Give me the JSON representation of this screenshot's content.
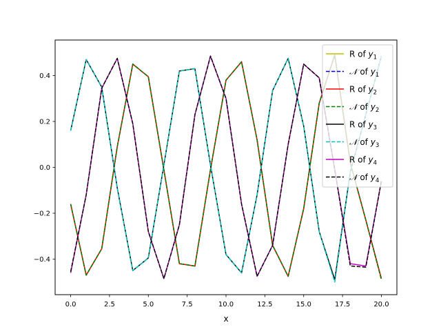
{
  "chart_data": {
    "type": "line",
    "title": "",
    "xlabel": "x",
    "ylabel": "",
    "xlim": [
      -1,
      21
    ],
    "ylim": [
      -0.555,
      0.555
    ],
    "xticks": [
      0.0,
      2.5,
      5.0,
      7.5,
      10.0,
      12.5,
      15.0,
      17.5,
      20.0
    ],
    "xtick_labels": [
      "0.0",
      "2.5",
      "5.0",
      "7.5",
      "10.0",
      "12.5",
      "15.0",
      "17.5",
      "20.0"
    ],
    "yticks": [
      -0.4,
      -0.2,
      0.0,
      0.2,
      0.4
    ],
    "ytick_labels": [
      "−0.4",
      "−0.2",
      "0.0",
      "0.2",
      "0.4"
    ],
    "grid": false,
    "legend_position": "top-right",
    "x": [
      0,
      1,
      2,
      3,
      4,
      5,
      6,
      7,
      8,
      9,
      10,
      11,
      12,
      13,
      14,
      15,
      16,
      17,
      18,
      19,
      20
    ],
    "series": [
      {
        "name": "R of y1",
        "label_main": "R of ",
        "label_var": "y",
        "label_sub": "1",
        "color": "#bfbf00",
        "dash": "solid",
        "values": [
          -0.16,
          -0.47,
          -0.355,
          0.09,
          0.45,
          0.395,
          -0.01,
          -0.42,
          -0.43,
          -0.01,
          0.38,
          0.46,
          0.12,
          -0.34,
          -0.475,
          -0.18,
          0.28,
          0.49,
          0.02,
          -0.23,
          -0.485
        ]
      },
      {
        "name": "N of y1",
        "label_main": " of ",
        "label_var": "y",
        "label_sub": "1",
        "color": "#0000bf",
        "dash": "dashed",
        "values": [
          -0.16,
          -0.47,
          -0.355,
          0.09,
          0.45,
          0.395,
          -0.01,
          -0.42,
          -0.43,
          -0.01,
          0.38,
          0.46,
          0.12,
          -0.34,
          -0.475,
          -0.18,
          0.28,
          0.49,
          0.02,
          -0.23,
          -0.485
        ]
      },
      {
        "name": "R of y2",
        "label_main": "R of ",
        "label_var": "y",
        "label_sub": "2",
        "color": "#ff0000",
        "dash": "solid",
        "values": [
          -0.16,
          -0.47,
          -0.355,
          0.09,
          0.45,
          0.395,
          -0.01,
          -0.42,
          -0.43,
          -0.01,
          0.38,
          0.46,
          0.12,
          -0.34,
          -0.475,
          -0.18,
          0.28,
          0.49,
          0.02,
          -0.23,
          -0.485
        ]
      },
      {
        "name": "N of y2",
        "label_main": " of ",
        "label_var": "y",
        "label_sub": "2",
        "color": "#008000",
        "dash": "dashed",
        "values": [
          -0.16,
          -0.47,
          -0.355,
          0.09,
          0.45,
          0.395,
          -0.01,
          -0.42,
          -0.43,
          -0.01,
          0.38,
          0.46,
          0.12,
          -0.34,
          -0.475,
          -0.18,
          0.28,
          0.49,
          0.02,
          -0.23,
          -0.49
        ]
      },
      {
        "name": "R of y3",
        "label_main": "R of ",
        "label_var": "y",
        "label_sub": "3",
        "color": "#000000",
        "dash": "solid",
        "values": [
          0.16,
          0.47,
          0.35,
          -0.09,
          -0.45,
          -0.395,
          0.01,
          0.42,
          0.43,
          0.01,
          -0.38,
          -0.46,
          -0.12,
          0.335,
          0.475,
          0.18,
          -0.28,
          -0.49,
          -0.02,
          0.23,
          0.485
        ]
      },
      {
        "name": "N of y3",
        "label_main": " of ",
        "label_var": "y",
        "label_sub": "3",
        "color": "#00bfbf",
        "dash": "dashed",
        "values": [
          0.16,
          0.47,
          0.35,
          -0.09,
          -0.45,
          -0.395,
          0.01,
          0.42,
          0.43,
          0.01,
          -0.38,
          -0.46,
          -0.12,
          0.335,
          0.475,
          0.18,
          -0.28,
          -0.5,
          -0.02,
          0.23,
          0.485
        ]
      },
      {
        "name": "R of y4",
        "label_main": "R of ",
        "label_var": "y",
        "label_sub": "4",
        "color": "#bf00bf",
        "dash": "solid",
        "values": [
          -0.46,
          -0.12,
          0.345,
          0.475,
          0.19,
          -0.28,
          -0.485,
          -0.25,
          0.23,
          0.485,
          0.3,
          -0.16,
          -0.475,
          -0.34,
          0.1,
          0.45,
          0.39,
          -0.01,
          -0.42,
          -0.43,
          -0.06
        ]
      },
      {
        "name": "N of y4",
        "label_main": " of ",
        "label_var": "y",
        "label_sub": "4",
        "color": "#000000",
        "dash": "dashed",
        "values": [
          -0.455,
          -0.12,
          0.345,
          0.475,
          0.19,
          -0.28,
          -0.485,
          -0.25,
          0.23,
          0.485,
          0.3,
          -0.16,
          -0.475,
          -0.34,
          0.1,
          0.45,
          0.39,
          -0.01,
          -0.43,
          -0.435,
          -0.06
        ]
      }
    ]
  }
}
